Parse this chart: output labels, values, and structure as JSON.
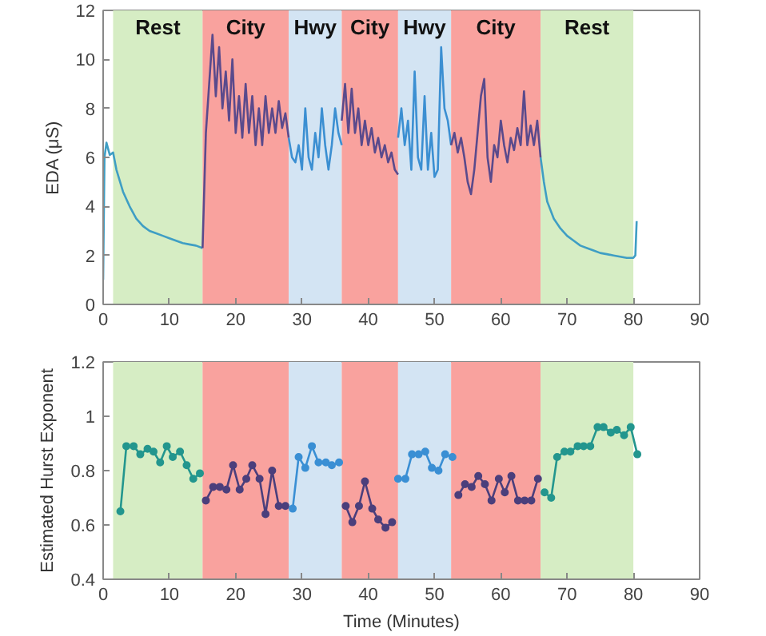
{
  "chart_data": [
    {
      "type": "line",
      "ylabel": "EDA (μS)",
      "xlim": [
        0,
        90
      ],
      "xticks": [
        0,
        10,
        20,
        30,
        40,
        50,
        60,
        70,
        80,
        90
      ],
      "ylim": [
        0,
        12
      ],
      "yticks": [
        0,
        2,
        4,
        6,
        8,
        10,
        12
      ],
      "grid": false,
      "marker": "none",
      "line_style": "solid",
      "bands": [
        {
          "axis": "x",
          "from": 1.5,
          "to": 15,
          "label": "Rest",
          "color": "#d6edc4"
        },
        {
          "axis": "x",
          "from": 15,
          "to": 28,
          "label": "City",
          "color": "#f9a29e"
        },
        {
          "axis": "x",
          "from": 28,
          "to": 36,
          "label": "Hwy",
          "color": "#d3e4f3"
        },
        {
          "axis": "x",
          "from": 36,
          "to": 44.5,
          "label": "City",
          "color": "#f9a29e"
        },
        {
          "axis": "x",
          "from": 44.5,
          "to": 52.5,
          "label": "Hwy",
          "color": "#d3e4f3"
        },
        {
          "axis": "x",
          "from": 52.5,
          "to": 66,
          "label": "City",
          "color": "#f9a29e"
        },
        {
          "axis": "x",
          "from": 66,
          "to": 80,
          "label": "Rest",
          "color": "#d6edc4"
        }
      ],
      "series": [
        {
          "color": "#3f9ec4",
          "x": [
            0,
            0.2,
            0.5,
            1,
            1.5,
            2,
            3,
            4,
            5,
            6,
            7,
            8,
            9,
            10,
            11,
            12,
            13,
            14,
            15
          ],
          "values": [
            1,
            6,
            6.6,
            6.1,
            6.2,
            5.5,
            4.6,
            4.0,
            3.5,
            3.2,
            3.0,
            2.9,
            2.8,
            2.7,
            2.6,
            2.5,
            2.45,
            2.4,
            2.3
          ]
        },
        {
          "color": "#5a4a8c",
          "x": [
            15,
            15.5,
            16,
            16.5,
            17,
            17.5,
            18,
            18.5,
            19,
            19.5,
            20,
            20.5,
            21,
            21.5,
            22,
            22.5,
            23,
            23.5,
            24,
            24.5,
            25,
            25.5,
            26,
            26.5,
            27,
            27.5,
            28
          ],
          "values": [
            2.3,
            7,
            9,
            11,
            8.5,
            10.5,
            8,
            9.5,
            7.5,
            10,
            7,
            8.5,
            6.8,
            9,
            7,
            8.5,
            6.5,
            8,
            6.5,
            8.5,
            7,
            8,
            7,
            8.3,
            7.2,
            7.8,
            6.8
          ]
        },
        {
          "color": "#3b8fd2",
          "x": [
            28,
            28.5,
            29,
            29.5,
            30,
            30.5,
            31,
            31.5,
            32,
            32.5,
            33,
            33.5,
            34,
            34.5,
            35,
            35.5,
            36
          ],
          "values": [
            6.8,
            6,
            5.8,
            6.5,
            5.5,
            8,
            6,
            5.5,
            7,
            6,
            8,
            6.5,
            5.5,
            6.5,
            8,
            7,
            6.5
          ]
        },
        {
          "color": "#5a4a8c",
          "x": [
            36,
            36.5,
            37,
            37.5,
            38,
            38.5,
            39,
            39.5,
            40,
            40.5,
            41,
            41.5,
            42,
            42.5,
            43,
            43.5,
            44,
            44.5
          ],
          "values": [
            7.5,
            9,
            7,
            8.8,
            7,
            8,
            6.5,
            7.5,
            6.5,
            7.2,
            6.2,
            6.8,
            6,
            6.5,
            5.8,
            6.2,
            5.5,
            5.3
          ]
        },
        {
          "color": "#3b8fd2",
          "x": [
            44.5,
            45,
            45.5,
            46,
            46.5,
            47,
            47.5,
            48,
            48.5,
            49,
            49.5,
            50,
            50.5,
            51,
            51.5,
            52,
            52.5
          ],
          "values": [
            6.8,
            8,
            6.5,
            7.5,
            5.5,
            9.5,
            6,
            5.5,
            8.5,
            5.5,
            7,
            5.2,
            5.5,
            10.5,
            8,
            7.5,
            6.5
          ]
        },
        {
          "color": "#5a4a8c",
          "x": [
            52.5,
            53,
            53.5,
            54,
            54.5,
            55,
            55.5,
            56,
            56.5,
            57,
            57.5,
            58,
            58.5,
            59,
            59.5,
            60,
            60.5,
            61,
            61.5,
            62,
            62.5,
            63,
            63.5,
            64,
            64.5,
            65,
            65.5,
            66
          ],
          "values": [
            6.5,
            7,
            6.2,
            6.8,
            6,
            5,
            4.5,
            5.5,
            7,
            8.5,
            9.2,
            6,
            5,
            6.5,
            6,
            7.5,
            6.5,
            5.8,
            6.8,
            6.3,
            7.2,
            6.5,
            8.7,
            6.5,
            7.3,
            6.5,
            7.5,
            6
          ]
        },
        {
          "color": "#3f9ec4",
          "x": [
            66,
            66.5,
            67,
            68,
            69,
            70,
            71,
            72,
            73,
            74,
            75,
            76,
            77,
            78,
            79,
            80,
            80.3,
            80.5
          ],
          "values": [
            6,
            5,
            4.2,
            3.5,
            3.1,
            2.8,
            2.6,
            2.4,
            2.3,
            2.2,
            2.1,
            2.05,
            2,
            1.95,
            1.9,
            1.9,
            2.0,
            3.4
          ]
        }
      ]
    },
    {
      "type": "line",
      "xlabel": "Time (Minutes)",
      "ylabel": "Estimated Hurst Exponent",
      "xlim": [
        0,
        90
      ],
      "xticks": [
        0,
        10,
        20,
        30,
        40,
        50,
        60,
        70,
        80,
        90
      ],
      "ylim": [
        0.4,
        1.2
      ],
      "yticks": [
        0.4,
        0.6,
        0.8,
        1,
        1.2
      ],
      "grid": false,
      "marker": "circle",
      "line_style": "solid",
      "bands": [
        {
          "axis": "x",
          "from": 1.5,
          "to": 15,
          "label": null,
          "color": "#d6edc4"
        },
        {
          "axis": "x",
          "from": 15,
          "to": 28,
          "label": null,
          "color": "#f9a29e"
        },
        {
          "axis": "x",
          "from": 28,
          "to": 36,
          "label": null,
          "color": "#d3e4f3"
        },
        {
          "axis": "x",
          "from": 36,
          "to": 44.5,
          "label": null,
          "color": "#f9a29e"
        },
        {
          "axis": "x",
          "from": 44.5,
          "to": 52.5,
          "label": null,
          "color": "#d3e4f3"
        },
        {
          "axis": "x",
          "from": 52.5,
          "to": 66,
          "label": null,
          "color": "#f9a29e"
        },
        {
          "axis": "x",
          "from": 66,
          "to": 80,
          "label": null,
          "color": "#d6edc4"
        }
      ],
      "series": [
        {
          "color": "#23968e",
          "x": [
            2.6,
            3.5,
            4.6,
            5.6,
            6.7,
            7.6,
            8.6,
            9.6,
            10.5,
            11.6,
            12.6,
            13.6,
            14.6
          ],
          "values": [
            0.65,
            0.89,
            0.89,
            0.86,
            0.88,
            0.87,
            0.83,
            0.89,
            0.85,
            0.87,
            0.82,
            0.77,
            0.79
          ]
        },
        {
          "color": "#4b3f7c",
          "x": [
            15.5,
            16.6,
            17.6,
            18.6,
            19.6,
            20.6,
            21.6,
            22.5,
            23.6,
            24.5,
            25.5,
            26.5,
            27.5
          ],
          "values": [
            0.69,
            0.74,
            0.74,
            0.73,
            0.82,
            0.73,
            0.77,
            0.82,
            0.77,
            0.64,
            0.8,
            0.67,
            0.67
          ]
        },
        {
          "color": "#3a8fd4",
          "x": [
            28.6,
            29.5,
            30.5,
            31.5,
            32.5,
            33.6,
            34.5,
            35.6
          ],
          "values": [
            0.66,
            0.85,
            0.81,
            0.89,
            0.83,
            0.83,
            0.82,
            0.83
          ]
        },
        {
          "color": "#4b3f7c",
          "x": [
            36.6,
            37.6,
            38.6,
            39.5,
            40.6,
            41.5,
            42.6,
            43.6
          ],
          "values": [
            0.67,
            0.61,
            0.67,
            0.76,
            0.66,
            0.62,
            0.59,
            0.61
          ]
        },
        {
          "color": "#3a8fd4",
          "x": [
            44.5,
            45.6,
            46.6,
            47.6,
            48.6,
            49.6,
            50.6,
            51.6,
            52.7
          ],
          "values": [
            0.77,
            0.77,
            0.86,
            0.86,
            0.87,
            0.81,
            0.8,
            0.86,
            0.85
          ]
        },
        {
          "color": "#4b3f7c",
          "x": [
            53.6,
            54.6,
            55.6,
            56.6,
            57.6,
            58.6,
            59.7,
            60.6,
            61.6,
            62.6,
            63.6,
            64.6,
            65.6
          ],
          "values": [
            0.71,
            0.75,
            0.74,
            0.78,
            0.75,
            0.69,
            0.77,
            0.72,
            0.78,
            0.69,
            0.69,
            0.69,
            0.77
          ]
        },
        {
          "color": "#23968e",
          "x": [
            66.6,
            67.6,
            68.5,
            69.6,
            70.5,
            71.6,
            72.5,
            73.5,
            74.6,
            75.5,
            76.6,
            77.5,
            78.6,
            79.6,
            80.6
          ],
          "values": [
            0.72,
            0.7,
            0.85,
            0.87,
            0.87,
            0.89,
            0.89,
            0.89,
            0.96,
            0.96,
            0.94,
            0.95,
            0.93,
            0.96,
            0.86
          ]
        }
      ]
    }
  ]
}
